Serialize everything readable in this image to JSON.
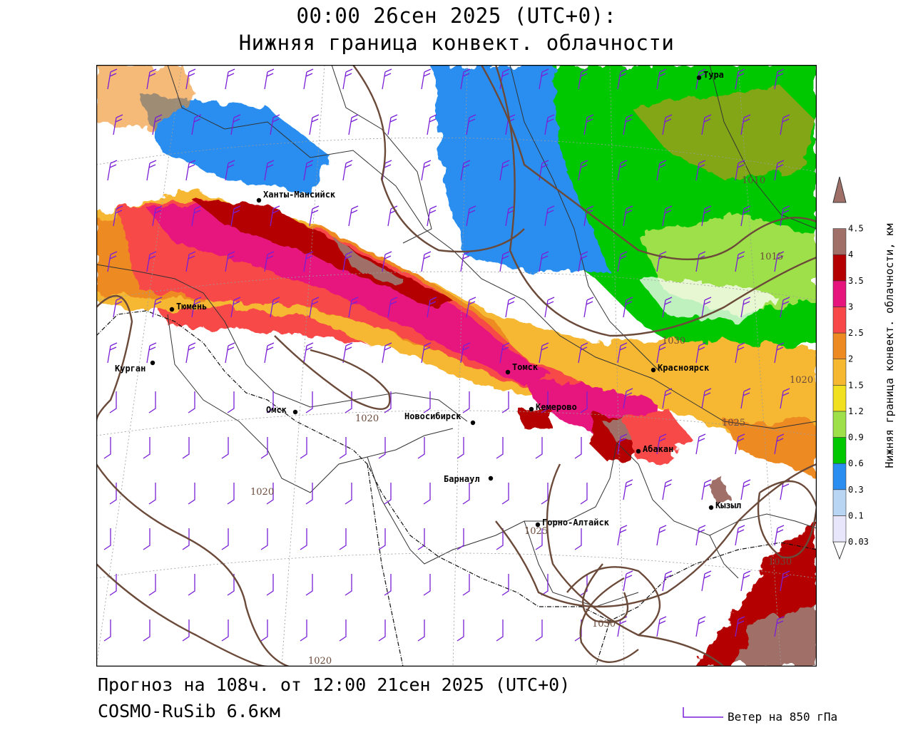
{
  "header": {
    "title_line1": "00:00 26сен 2025 (UTC+0):",
    "title_line2": "Нижняя граница конвект. облачности"
  },
  "footer": {
    "forecast": "Прогноз на 108ч. от 12:00 21сен 2025 (UTC+0)",
    "model": "COSMO-RuSib 6.6км"
  },
  "wind_legend": {
    "label": "Ветер на 850 гПа",
    "color": "#7a1fd6"
  },
  "colorbar": {
    "label": "Нижняя граница конвект. облачности, км",
    "levels": [
      "0.03",
      "0.1",
      "0.3",
      "0.6",
      "0.9",
      "1.2",
      "1.5",
      "2",
      "2.5",
      "3",
      "3.5",
      "4",
      "4.5"
    ],
    "colors": [
      "#ffffff",
      "#e8e6fa",
      "#b8d6f4",
      "#2a8ef0",
      "#00c800",
      "#9ee04a",
      "#f0e020",
      "#f6b830",
      "#ee8a22",
      "#f84848",
      "#e6157e",
      "#b40000",
      "#a07068",
      "#a07068"
    ]
  },
  "cities": [
    {
      "name": "Тура"
    },
    {
      "name": "Ханты-Мансийск"
    },
    {
      "name": "Тюмень"
    },
    {
      "name": "Курган"
    },
    {
      "name": "Омск"
    },
    {
      "name": "Томск"
    },
    {
      "name": "Красноярск"
    },
    {
      "name": "Кемерово"
    },
    {
      "name": "Новосибирск"
    },
    {
      "name": "Абакан"
    },
    {
      "name": "Барнаул"
    },
    {
      "name": "Кызыл"
    },
    {
      "name": "Горно-Алтайск"
    }
  ],
  "isobars": [
    {
      "label": "1020"
    },
    {
      "label": "1020"
    },
    {
      "label": "1020"
    },
    {
      "label": "1025"
    },
    {
      "label": "1025"
    },
    {
      "label": "1030"
    },
    {
      "label": "1030"
    },
    {
      "label": "1030"
    },
    {
      "label": "1010"
    },
    {
      "label": "1015"
    },
    {
      "label": "1020"
    }
  ],
  "colors": {
    "isobar": "#6b4a3a",
    "border": "#333333",
    "wind": "#7a1fd6"
  }
}
